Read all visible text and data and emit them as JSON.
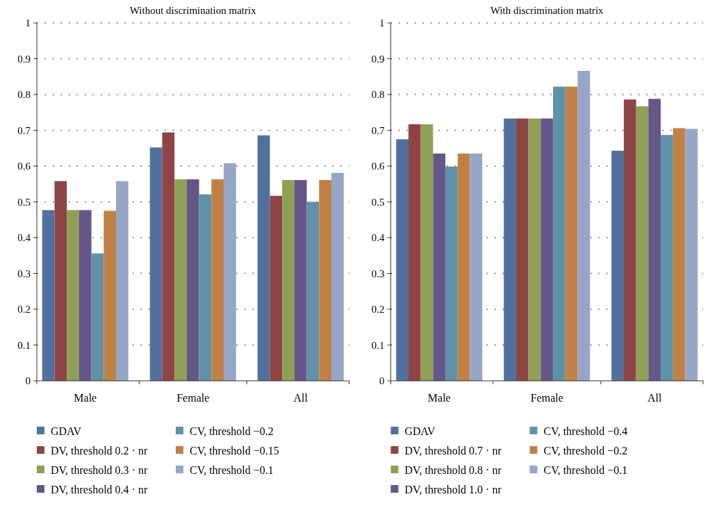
{
  "chart_data": [
    {
      "type": "bar",
      "title": "Without discrimination matrix",
      "categories": [
        "Male",
        "Female",
        "All"
      ],
      "series": [
        {
          "name": "GDAV",
          "color": "#52709e",
          "values": [
            0.477,
            0.652,
            0.686
          ]
        },
        {
          "name": "DV, threshold 0.2 · nr",
          "color": "#8e4445",
          "values": [
            0.558,
            0.694,
            0.517
          ]
        },
        {
          "name": "DV, threshold 0.3 · nr",
          "color": "#8ea056",
          "values": [
            0.477,
            0.563,
            0.561
          ]
        },
        {
          "name": "DV, threshold 0.4 · nr",
          "color": "#665588",
          "values": [
            0.477,
            0.563,
            0.561
          ]
        },
        {
          "name": "CV, threshold −0.2",
          "color": "#5f92a8",
          "values": [
            0.356,
            0.521,
            0.5
          ]
        },
        {
          "name": "CV, threshold −0.15",
          "color": "#c18146",
          "values": [
            0.475,
            0.563,
            0.561
          ]
        },
        {
          "name": "CV, threshold −0.1",
          "color": "#96a6c8",
          "values": [
            0.558,
            0.608,
            0.581
          ]
        }
      ],
      "ylim": [
        0,
        1
      ],
      "yticks": [
        0,
        0.1,
        0.2,
        0.3,
        0.4,
        0.5,
        0.6,
        0.7,
        0.8,
        0.9,
        1
      ],
      "grid": "y",
      "legend": "bottom"
    },
    {
      "type": "bar",
      "title": "With discrimination matrix",
      "categories": [
        "Male",
        "Female",
        "All"
      ],
      "series": [
        {
          "name": "GDAV",
          "color": "#52709e",
          "values": [
            0.675,
            0.733,
            0.643
          ]
        },
        {
          "name": "DV, threshold 0.7 · nr",
          "color": "#8e4445",
          "values": [
            0.717,
            0.733,
            0.786
          ]
        },
        {
          "name": "DV, threshold 0.8 · nr",
          "color": "#8ea056",
          "values": [
            0.717,
            0.733,
            0.767
          ]
        },
        {
          "name": "DV, threshold 1.0 · nr",
          "color": "#665588",
          "values": [
            0.635,
            0.733,
            0.788
          ]
        },
        {
          "name": "CV, threshold −0.4",
          "color": "#5f92a8",
          "values": [
            0.599,
            0.822,
            0.687
          ]
        },
        {
          "name": "CV, threshold −0.2",
          "color": "#c18146",
          "values": [
            0.635,
            0.822,
            0.706
          ]
        },
        {
          "name": "CV, threshold −0.1",
          "color": "#96a6c8",
          "values": [
            0.635,
            0.866,
            0.704
          ]
        }
      ],
      "ylim": [
        0,
        1
      ],
      "yticks": [
        0,
        0.1,
        0.2,
        0.3,
        0.4,
        0.5,
        0.6,
        0.7,
        0.8,
        0.9,
        1
      ],
      "grid": "y",
      "legend": "bottom"
    }
  ]
}
